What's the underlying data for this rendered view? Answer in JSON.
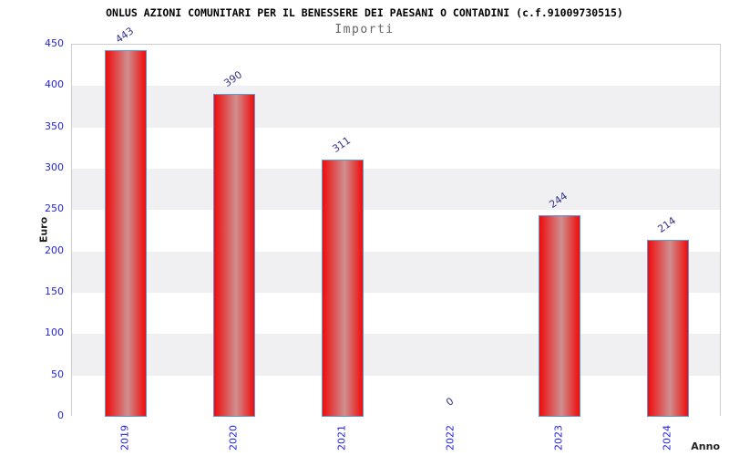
{
  "chart_data": {
    "type": "bar",
    "title": "ONLUS AZIONI COMUNITARI PER IL BENESSERE DEI PAESANI O CONTADINI (c.f.91009730515)",
    "subtitle": "Importi",
    "xlabel": "Anno",
    "ylabel": "Euro",
    "categories": [
      "2019",
      "2020",
      "2021",
      "2022",
      "2023",
      "2024"
    ],
    "values": [
      443,
      390,
      311,
      0,
      244,
      214
    ],
    "ylim": [
      0,
      450
    ],
    "ytick_step": 50,
    "yticks": [
      0,
      50,
      100,
      150,
      200,
      250,
      300,
      350,
      400,
      450
    ],
    "grid": "alternating horizontal bands every 50 units",
    "legend": "none",
    "colors": {
      "tick_label": "#2323e6",
      "value_label": "#333388",
      "bar_edge_red": "#ee1111",
      "bar_center_highlight": "#cf8f8f",
      "bar_border_blue": "#5b9bd5",
      "band_gray": "#f0f0f2",
      "plot_border": "#cccccc",
      "axis_title": "#222222",
      "title_color": "#000000",
      "subtitle_color": "#666666"
    }
  }
}
